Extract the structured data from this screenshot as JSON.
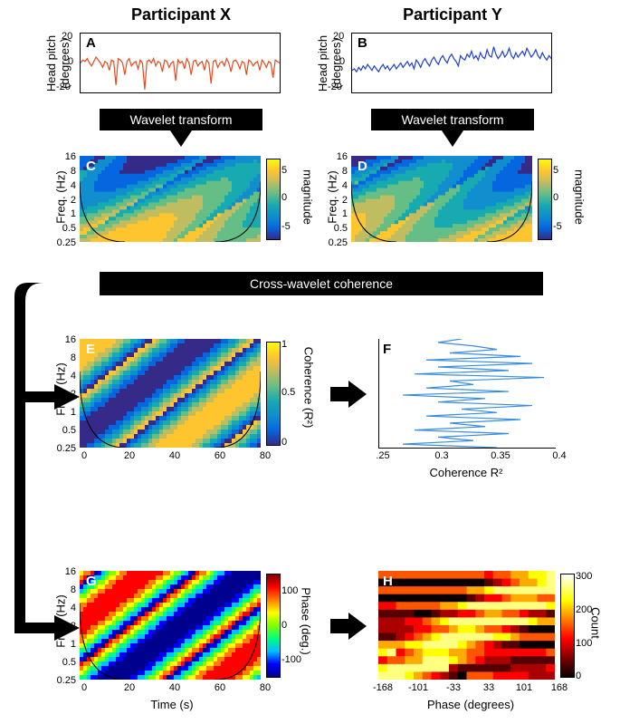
{
  "titles": {
    "left": "Participant X",
    "right": "Participant Y"
  },
  "banners": {
    "wavelet": "Wavelet transform",
    "cross": "Cross-wavelet coherence"
  },
  "panel_labels": {
    "A": "A",
    "B": "B",
    "C": "C",
    "D": "D",
    "E": "E",
    "F": "F",
    "G": "G",
    "H": "H"
  },
  "axis_labels": {
    "head_pitch": "Head pitch\n(degrees)",
    "freq": "Freq. (Hz)",
    "magnitude": "magnitude",
    "coherence_cb": "Coherence (R²)",
    "phase_cb": "Phase (deg.)",
    "count_cb": "Count",
    "time": "Time (s)",
    "coherence_x": "Coherence R²",
    "phase_x": "Phase (degrees)"
  },
  "colors": {
    "lineA": "#e8491c",
    "lineB": "#1f3fd1",
    "lineF": "#3a8dde",
    "parula": [
      "#352a87",
      "#0567df",
      "#108ece",
      "#18aab1",
      "#65be86",
      "#c0bc60",
      "#fec52e",
      "#f9fb0e"
    ],
    "jet": [
      "#00008f",
      "#0000ff",
      "#00bfff",
      "#00ff80",
      "#80ff00",
      "#ffff00",
      "#ff8000",
      "#ff0000",
      "#800000"
    ],
    "hot": [
      "#0b0000",
      "#550000",
      "#aa0000",
      "#ff0000",
      "#ff5500",
      "#ffaa00",
      "#ffff00",
      "#ffff80",
      "#ffffff"
    ]
  },
  "panel_A": {
    "ylim": [
      -20,
      20
    ],
    "yticks": [
      -20,
      0,
      20
    ],
    "xlim": [
      0,
      90
    ],
    "data": [
      0,
      2,
      1,
      3,
      0,
      -2,
      1,
      4,
      2,
      0,
      -3,
      1,
      0,
      -5,
      2,
      1,
      -15,
      3,
      2,
      0,
      -8,
      1,
      3,
      -2,
      0,
      1,
      -4,
      2,
      0,
      -18,
      1,
      2,
      0,
      3,
      -2,
      1,
      0,
      -6,
      2,
      1,
      -3,
      0,
      1,
      -12,
      2,
      0,
      1,
      -4,
      3,
      0,
      -8,
      1,
      2,
      -2,
      0,
      1,
      -5,
      2,
      0,
      -14,
      1,
      2,
      -3,
      0,
      1,
      -2,
      3,
      0,
      -6,
      1,
      2,
      0,
      -4,
      1,
      0,
      -8,
      2,
      1,
      -2,
      0,
      1,
      -5,
      2,
      0,
      -3,
      1,
      0,
      -10,
      2,
      1,
      0
    ]
  },
  "panel_B": {
    "ylim": [
      -20,
      20
    ],
    "yticks": [
      -20,
      0,
      20
    ],
    "xlim": [
      0,
      90
    ],
    "data": [
      -5,
      -4,
      -6,
      -3,
      -5,
      -2,
      -4,
      -1,
      -3,
      -5,
      -2,
      -4,
      -6,
      -3,
      -1,
      -4,
      -2,
      -5,
      -3,
      -1,
      -4,
      -2,
      0,
      -3,
      -1,
      1,
      -2,
      0,
      -4,
      2,
      0,
      -3,
      1,
      3,
      0,
      -2,
      2,
      4,
      1,
      -1,
      3,
      5,
      2,
      0,
      4,
      6,
      3,
      1,
      -2,
      5,
      3,
      2,
      6,
      4,
      8,
      3,
      5,
      2,
      7,
      4,
      3,
      9,
      5,
      4,
      11,
      6,
      3,
      5,
      8,
      4,
      6,
      10,
      5,
      3,
      7,
      4,
      6,
      8,
      5,
      10,
      7,
      4,
      6,
      9,
      5,
      3,
      7,
      4,
      2,
      5,
      3
    ]
  },
  "yticks_freq": [
    "16",
    "8",
    "4",
    "2",
    "1",
    "0.5",
    "0.25"
  ],
  "panel_CD_cb_ticks": [
    "5",
    "0",
    "-5"
  ],
  "panel_E": {
    "xticks": [
      "0",
      "20",
      "40",
      "60",
      "80"
    ],
    "cb_ticks": [
      "1",
      "0.5",
      "0"
    ]
  },
  "panel_F": {
    "xticks": [
      ".25",
      "0.3",
      "0.35",
      "0.4"
    ],
    "data": [
      0.32,
      0.3,
      0.33,
      0.35,
      0.31,
      0.37,
      0.29,
      0.38,
      0.3,
      0.36,
      0.28,
      0.39,
      0.31,
      0.33,
      0.29,
      0.36,
      0.27,
      0.34,
      0.3,
      0.38,
      0.32,
      0.35,
      0.29,
      0.37,
      0.31,
      0.34,
      0.28,
      0.36,
      0.3,
      0.33,
      0.27,
      0.35
    ]
  },
  "panel_G": {
    "xticks": [
      "0",
      "20",
      "40",
      "60",
      "80"
    ],
    "cb_ticks": [
      "100",
      "0",
      "-100"
    ]
  },
  "panel_H": {
    "xticks": [
      "-168",
      "-101",
      "-33",
      "33",
      "101",
      "168"
    ],
    "cb_ticks": [
      "300",
      "200",
      "100",
      "0"
    ]
  }
}
